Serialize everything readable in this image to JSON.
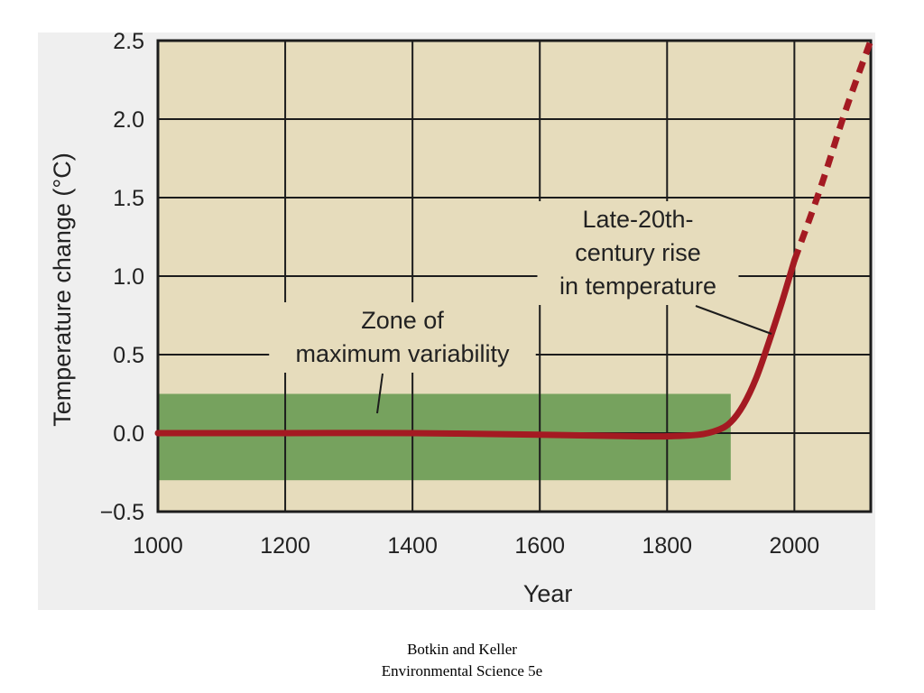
{
  "chart_data": {
    "type": "line",
    "xlabel": "Year",
    "ylabel": "Temperature change (°C)",
    "xlim": [
      1000,
      2120
    ],
    "ylim": [
      -0.5,
      2.5
    ],
    "x_ticks": [
      1000,
      1200,
      1400,
      1600,
      1800,
      2000
    ],
    "y_ticks": [
      2.5,
      2.0,
      1.5,
      1.0,
      0.5,
      0.0,
      -0.5
    ],
    "y_tick_labels": [
      "2.5",
      "2.0",
      "1.5",
      "1.0",
      "0.5",
      "0.0",
      "−0.5"
    ],
    "grid": true,
    "series": [
      {
        "style": "solid",
        "x": [
          1000,
          1200,
          1400,
          1600,
          1750,
          1800,
          1850,
          1880,
          1900,
          1920,
          1940,
          1960,
          1980,
          2000
        ],
        "y": [
          0.0,
          0.0,
          0.0,
          -0.01,
          -0.02,
          -0.02,
          -0.01,
          0.02,
          0.07,
          0.18,
          0.35,
          0.58,
          0.83,
          1.1
        ]
      },
      {
        "style": "dashed",
        "x": [
          2000,
          2040,
          2080,
          2120
        ],
        "y": [
          1.1,
          1.55,
          2.05,
          2.5
        ]
      }
    ],
    "band": {
      "x": [
        1000,
        1900
      ],
      "y": [
        -0.3,
        0.25
      ]
    },
    "annotations": [
      {
        "id": "zone",
        "lines": [
          "Zone of",
          "maximum variability"
        ]
      },
      {
        "id": "rise",
        "lines": [
          "Late-20th-",
          "century rise",
          "in temperature"
        ]
      }
    ]
  },
  "colors": {
    "plot_background": "#e6dcbc",
    "band": "#76a25e",
    "line": "#a41a22",
    "grid": "#1c1c1c"
  },
  "caption": {
    "line1": "Botkin and Keller",
    "line2": "Environmental Science 5e"
  }
}
